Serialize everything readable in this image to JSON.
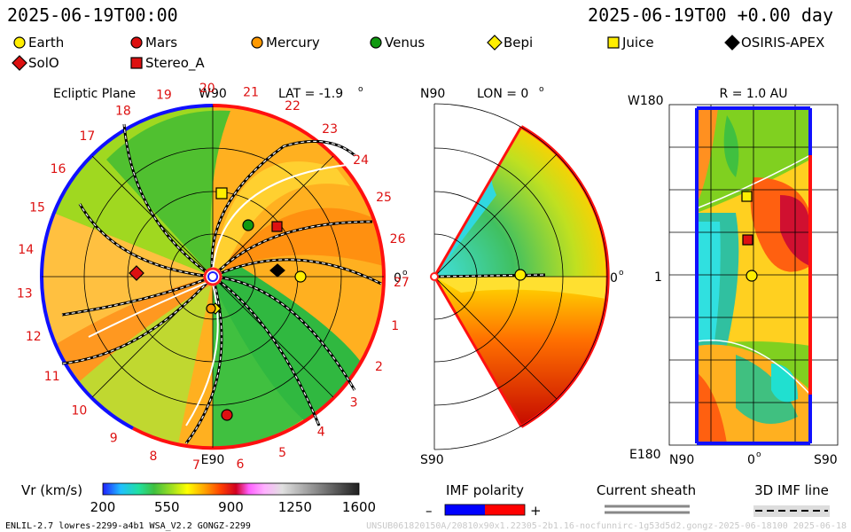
{
  "header": {
    "left_datetime": "2025-06-19T00:00",
    "right_datetime": "2025-06-19T00 +0.00 day"
  },
  "legend": {
    "items": [
      {
        "label": "Earth",
        "shape": "circle",
        "color": "#ffee00"
      },
      {
        "label": "Mars",
        "shape": "circle",
        "color": "#dd1111"
      },
      {
        "label": "Mercury",
        "shape": "circle",
        "color": "#ff9900"
      },
      {
        "label": "Venus",
        "shape": "circle",
        "color": "#119911"
      },
      {
        "label": "Bepi",
        "shape": "diamond",
        "color": "#ffee00"
      },
      {
        "label": "Juice",
        "shape": "square",
        "color": "#ffee00"
      },
      {
        "label": "OSIRIS-APEX",
        "shape": "diamond",
        "color": "#000000"
      },
      {
        "label": "SolO",
        "shape": "diamond",
        "color": "#dd1111"
      },
      {
        "label": "Stereo_A",
        "shape": "square",
        "color": "#dd1111"
      }
    ]
  },
  "ecliptic": {
    "title": "Ecliptic Plane",
    "top_label": "W90",
    "bottom_label": "E90",
    "right_label": "0",
    "right_label_sup": "o",
    "lat_label": "LAT = -1.9",
    "lat_sup": "o",
    "rotation_numbers": [
      "19",
      "20",
      "21",
      "22",
      "23",
      "24",
      "25",
      "26",
      "27",
      "1",
      "2",
      "3",
      "4",
      "5",
      "6",
      "7",
      "8",
      "9",
      "10",
      "11",
      "12",
      "13",
      "14",
      "15",
      "16",
      "17",
      "18"
    ]
  },
  "meridional": {
    "top_left": "N90",
    "lon_label": "LON = 0",
    "lon_sup": "o",
    "right_label": "0",
    "right_sup": "o",
    "bottom_left": "S90"
  },
  "lonlat": {
    "title": "R = 1.0 AU",
    "y_top": "W180",
    "y_mid": "1",
    "y_bottom": "E180",
    "x_left": "N90",
    "x_mid": "0",
    "x_mid_sup": "o",
    "x_right": "S90"
  },
  "colorbar": {
    "label": "Vr (km/s)",
    "ticks": [
      "200",
      "550",
      "900",
      "1250",
      "1600"
    ],
    "colors": [
      "#2020ff",
      "#20c0ff",
      "#20e0a0",
      "#40c040",
      "#a0e020",
      "#ffff00",
      "#ffa000",
      "#ff4000",
      "#d00020",
      "#ff60ff",
      "#ffb0ff",
      "#e0e0e0",
      "#a0a0a0",
      "#606060",
      "#202020"
    ]
  },
  "imf_polarity": {
    "label": "IMF polarity",
    "minus": "–",
    "plus": "+",
    "neg_color": "#0000ff",
    "pos_color": "#ff0000"
  },
  "current_sheath": {
    "label": "Current sheath"
  },
  "imf_line": {
    "label": "3D IMF line"
  },
  "footer": {
    "left": "ENLIL-2.7 lowres-2299-a4b1 WSA_V2.2 GONGZ-2299",
    "right": "UNSUB061820150A/20810x90x1.22305-2b1.16-nocfunnirc-1g53d5d2.gongz-2025-06-18100   2025-06-18"
  }
}
